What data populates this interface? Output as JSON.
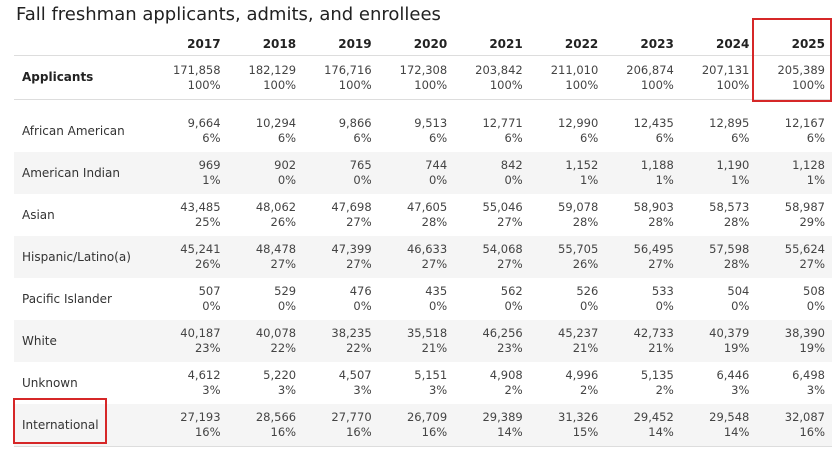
{
  "title": "Fall freshman applicants, admits, and enrollees",
  "years": [
    "2017",
    "2018",
    "2019",
    "2020",
    "2021",
    "2022",
    "2023",
    "2024",
    "2025"
  ],
  "applicants": {
    "label": "Applicants",
    "values": [
      {
        "n": "171,858",
        "p": "100%"
      },
      {
        "n": "182,129",
        "p": "100%"
      },
      {
        "n": "176,716",
        "p": "100%"
      },
      {
        "n": "172,308",
        "p": "100%"
      },
      {
        "n": "203,842",
        "p": "100%"
      },
      {
        "n": "211,010",
        "p": "100%"
      },
      {
        "n": "206,874",
        "p": "100%"
      },
      {
        "n": "207,131",
        "p": "100%"
      },
      {
        "n": "205,389",
        "p": "100%"
      }
    ]
  },
  "rows": [
    {
      "label": "African American",
      "values": [
        {
          "n": "9,664",
          "p": "6%"
        },
        {
          "n": "10,294",
          "p": "6%"
        },
        {
          "n": "9,866",
          "p": "6%"
        },
        {
          "n": "9,513",
          "p": "6%"
        },
        {
          "n": "12,771",
          "p": "6%"
        },
        {
          "n": "12,990",
          "p": "6%"
        },
        {
          "n": "12,435",
          "p": "6%"
        },
        {
          "n": "12,895",
          "p": "6%"
        },
        {
          "n": "12,167",
          "p": "6%"
        }
      ]
    },
    {
      "label": "American Indian",
      "values": [
        {
          "n": "969",
          "p": "1%"
        },
        {
          "n": "902",
          "p": "0%"
        },
        {
          "n": "765",
          "p": "0%"
        },
        {
          "n": "744",
          "p": "0%"
        },
        {
          "n": "842",
          "p": "0%"
        },
        {
          "n": "1,152",
          "p": "1%"
        },
        {
          "n": "1,188",
          "p": "1%"
        },
        {
          "n": "1,190",
          "p": "1%"
        },
        {
          "n": "1,128",
          "p": "1%"
        }
      ]
    },
    {
      "label": "Asian",
      "values": [
        {
          "n": "43,485",
          "p": "25%"
        },
        {
          "n": "48,062",
          "p": "26%"
        },
        {
          "n": "47,698",
          "p": "27%"
        },
        {
          "n": "47,605",
          "p": "28%"
        },
        {
          "n": "55,046",
          "p": "27%"
        },
        {
          "n": "59,078",
          "p": "28%"
        },
        {
          "n": "58,903",
          "p": "28%"
        },
        {
          "n": "58,573",
          "p": "28%"
        },
        {
          "n": "58,987",
          "p": "29%"
        }
      ]
    },
    {
      "label": "Hispanic/Latino(a)",
      "values": [
        {
          "n": "45,241",
          "p": "26%"
        },
        {
          "n": "48,478",
          "p": "27%"
        },
        {
          "n": "47,399",
          "p": "27%"
        },
        {
          "n": "46,633",
          "p": "27%"
        },
        {
          "n": "54,068",
          "p": "27%"
        },
        {
          "n": "55,705",
          "p": "26%"
        },
        {
          "n": "56,495",
          "p": "27%"
        },
        {
          "n": "57,598",
          "p": "28%"
        },
        {
          "n": "55,624",
          "p": "27%"
        }
      ]
    },
    {
      "label": "Pacific Islander",
      "values": [
        {
          "n": "507",
          "p": "0%"
        },
        {
          "n": "529",
          "p": "0%"
        },
        {
          "n": "476",
          "p": "0%"
        },
        {
          "n": "435",
          "p": "0%"
        },
        {
          "n": "562",
          "p": "0%"
        },
        {
          "n": "526",
          "p": "0%"
        },
        {
          "n": "533",
          "p": "0%"
        },
        {
          "n": "504",
          "p": "0%"
        },
        {
          "n": "508",
          "p": "0%"
        }
      ]
    },
    {
      "label": "White",
      "values": [
        {
          "n": "40,187",
          "p": "23%"
        },
        {
          "n": "40,078",
          "p": "22%"
        },
        {
          "n": "38,235",
          "p": "22%"
        },
        {
          "n": "35,518",
          "p": "21%"
        },
        {
          "n": "46,256",
          "p": "23%"
        },
        {
          "n": "45,237",
          "p": "21%"
        },
        {
          "n": "42,733",
          "p": "21%"
        },
        {
          "n": "40,379",
          "p": "19%"
        },
        {
          "n": "38,390",
          "p": "19%"
        }
      ]
    },
    {
      "label": "Unknown",
      "values": [
        {
          "n": "4,612",
          "p": "3%"
        },
        {
          "n": "5,220",
          "p": "3%"
        },
        {
          "n": "4,507",
          "p": "3%"
        },
        {
          "n": "5,151",
          "p": "3%"
        },
        {
          "n": "4,908",
          "p": "2%"
        },
        {
          "n": "4,996",
          "p": "2%"
        },
        {
          "n": "5,135",
          "p": "2%"
        },
        {
          "n": "6,446",
          "p": "3%"
        },
        {
          "n": "6,498",
          "p": "3%"
        }
      ]
    },
    {
      "label": "International",
      "values": [
        {
          "n": "27,193",
          "p": "16%"
        },
        {
          "n": "28,566",
          "p": "16%"
        },
        {
          "n": "27,770",
          "p": "16%"
        },
        {
          "n": "26,709",
          "p": "16%"
        },
        {
          "n": "29,389",
          "p": "14%"
        },
        {
          "n": "31,326",
          "p": "15%"
        },
        {
          "n": "29,452",
          "p": "14%"
        },
        {
          "n": "29,548",
          "p": "14%"
        },
        {
          "n": "32,087",
          "p": "16%"
        }
      ]
    }
  ],
  "highlight_color": "#d62728"
}
